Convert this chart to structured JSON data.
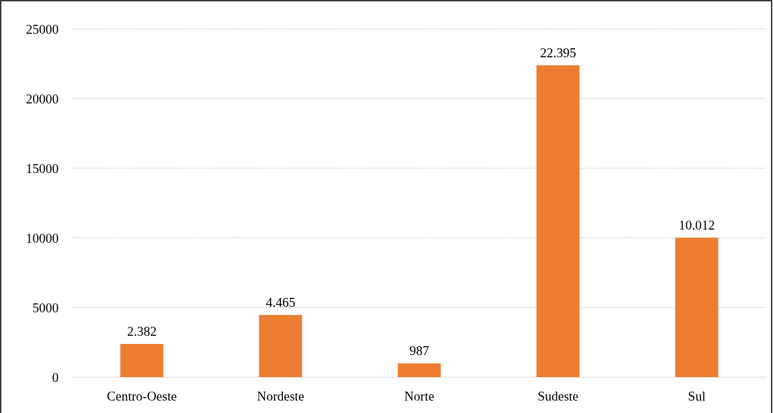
{
  "chart_data": {
    "type": "bar",
    "categories": [
      "Centro-Oeste",
      "Nordeste",
      "Norte",
      "Sudeste",
      "Sul"
    ],
    "values": [
      2382,
      4465,
      987,
      22395,
      10012
    ],
    "value_labels": [
      "2.382",
      "4.465",
      "987",
      "22.395",
      "10.012"
    ],
    "color": "#ed7d31",
    "ylim": [
      0,
      25000
    ],
    "yticks": [
      0,
      5000,
      10000,
      15000,
      20000,
      25000
    ],
    "grid": "y"
  }
}
